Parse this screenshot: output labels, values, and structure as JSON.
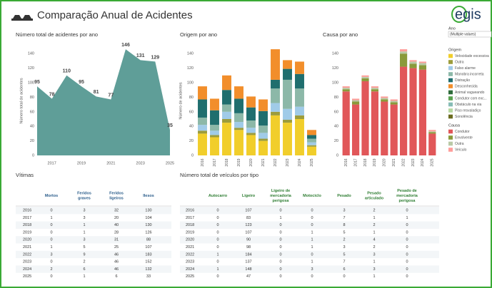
{
  "header": {
    "title": "Comparação Anual de Acidentes",
    "logo": "egis"
  },
  "filters": {
    "label": "Ano",
    "value": "(Multiple values)"
  },
  "chart_data": [
    {
      "type": "area",
      "title": "Número total de acidentes por ano",
      "y_label": "Número total de acidentes",
      "color": "#5f9e98",
      "x": [
        2016,
        2017,
        2018,
        2019,
        2020,
        2021,
        2022,
        2023,
        2024,
        2025
      ],
      "values": [
        95,
        78,
        110,
        95,
        81,
        77,
        146,
        131,
        129,
        35
      ],
      "xlim": [
        2016,
        2025
      ],
      "xticks": [
        2017,
        2019,
        2021,
        2023,
        2025
      ],
      "ylim": [
        0,
        150
      ],
      "yticks": [
        0,
        20,
        40,
        60,
        80,
        100,
        120,
        140
      ],
      "grid": false
    },
    {
      "type": "bar",
      "title": "Origem por ano",
      "y_label": "Número de acidentes",
      "legend_title": "Origem",
      "stacked": true,
      "categories": [
        "2016",
        "2017",
        "2018",
        "2019",
        "2020",
        "2021",
        "2022",
        "2023",
        "2024",
        "2025"
      ],
      "ylim": [
        0,
        150
      ],
      "yticks": [
        0,
        20,
        40,
        60,
        80,
        100,
        120,
        140
      ],
      "grid": false,
      "series": [
        {
          "name": "Velocidade excessiva",
          "color": "#f1ce2b",
          "values": [
            30,
            25,
            45,
            35,
            28,
            20,
            55,
            45,
            50,
            12
          ]
        },
        {
          "name": "Outra",
          "color": "#9c9c3c",
          "values": [
            4,
            3,
            5,
            3,
            3,
            3,
            5,
            4,
            5,
            2
          ]
        },
        {
          "name": "Falso alarme",
          "color": "#a0cbe8",
          "values": [
            8,
            6,
            10,
            8,
            7,
            8,
            12,
            15,
            12,
            4
          ]
        },
        {
          "name": "Manobra incorreta",
          "color": "#8cb8a8",
          "values": [
            10,
            8,
            10,
            12,
            10,
            10,
            20,
            40,
            25,
            5
          ]
        },
        {
          "name": "Distração",
          "color": "#1f6e6e",
          "values": [
            25,
            20,
            20,
            20,
            18,
            20,
            12,
            15,
            20,
            5
          ]
        },
        {
          "name": "Desconhecida",
          "color": "#f28e2b",
          "values": [
            18,
            16,
            20,
            17,
            15,
            16,
            42,
            12,
            17,
            7
          ]
        },
        {
          "name": "Animal vagueando",
          "color": "#2e6b3a",
          "values": [
            0,
            0,
            0,
            0,
            0,
            0,
            0,
            0,
            0,
            0
          ]
        },
        {
          "name": "Condutor com exc...",
          "color": "#59a14f",
          "values": [
            0,
            0,
            0,
            0,
            0,
            0,
            0,
            0,
            0,
            0
          ]
        },
        {
          "name": "Obstáculo na via",
          "color": "#86bcb6",
          "values": [
            0,
            0,
            0,
            0,
            0,
            0,
            0,
            0,
            0,
            0
          ]
        },
        {
          "name": "Piso resvaladiço",
          "color": "#b5d7a0",
          "values": [
            0,
            0,
            0,
            0,
            0,
            0,
            0,
            0,
            0,
            0
          ]
        },
        {
          "name": "Sonolência",
          "color": "#6b6b1f",
          "values": [
            0,
            0,
            0,
            0,
            0,
            0,
            0,
            0,
            0,
            0
          ]
        }
      ]
    },
    {
      "type": "bar",
      "title": "Causa por ano",
      "legend_title": "Causa",
      "stacked": true,
      "categories": [
        "2016",
        "2017",
        "2018",
        "2019",
        "2020",
        "2021",
        "2022",
        "2023",
        "2024",
        "2025"
      ],
      "ylim": [
        0,
        150
      ],
      "yticks": [
        0,
        20,
        40,
        60,
        80,
        100,
        120,
        140
      ],
      "grid": false,
      "series": [
        {
          "name": "Condutor",
          "color": "#e15759",
          "values": [
            88,
            70,
            102,
            88,
            74,
            70,
            122,
            120,
            118,
            30
          ]
        },
        {
          "name": "Envolvente",
          "color": "#8a9a3a",
          "values": [
            3,
            4,
            4,
            3,
            3,
            3,
            18,
            6,
            6,
            2
          ]
        },
        {
          "name": "Outra",
          "color": "#b9c9a6",
          "values": [
            2,
            2,
            2,
            2,
            2,
            2,
            3,
            3,
            3,
            1
          ]
        },
        {
          "name": "Veículo",
          "color": "#ff9d9a",
          "values": [
            2,
            2,
            2,
            2,
            2,
            2,
            3,
            2,
            2,
            2
          ]
        }
      ]
    }
  ],
  "tables": [
    {
      "title": "Vítimas",
      "header_color": "#2a5c8a",
      "columns": [
        "Mortos",
        "Feridos graves",
        "Feridos ligeiros",
        "Ilesos"
      ],
      "rows": [
        [
          2016,
          0,
          3,
          32,
          130
        ],
        [
          2017,
          1,
          3,
          20,
          104
        ],
        [
          2018,
          0,
          1,
          40,
          130
        ],
        [
          2019,
          0,
          1,
          28,
          126
        ],
        [
          2020,
          0,
          3,
          31,
          88
        ],
        [
          2021,
          1,
          5,
          25,
          107
        ],
        [
          2022,
          3,
          9,
          46,
          183
        ],
        [
          2023,
          0,
          2,
          46,
          152
        ],
        [
          2024,
          2,
          6,
          46,
          132
        ],
        [
          2025,
          0,
          1,
          6,
          33
        ]
      ]
    },
    {
      "title": "Número total de veículos por tipo",
      "header_color": "#2e7d32",
      "columns": [
        "Autocarro",
        "Ligeiro",
        "Ligeiro de mercadoria perigosa",
        "Motociclo",
        "Pesado",
        "Pesado articulado",
        "Pesado de mercadoria perigosa"
      ],
      "rows": [
        [
          2016,
          0,
          107,
          0,
          0,
          3,
          2,
          0
        ],
        [
          2017,
          0,
          83,
          1,
          0,
          7,
          1,
          1
        ],
        [
          2018,
          0,
          123,
          0,
          0,
          8,
          2,
          0
        ],
        [
          2019,
          0,
          107,
          0,
          1,
          5,
          1,
          0
        ],
        [
          2020,
          0,
          90,
          0,
          1,
          2,
          4,
          0
        ],
        [
          2021,
          0,
          98,
          0,
          1,
          3,
          2,
          0
        ],
        [
          2022,
          1,
          184,
          0,
          0,
          5,
          3,
          0
        ],
        [
          2023,
          0,
          137,
          0,
          1,
          7,
          1,
          0
        ],
        [
          2024,
          1,
          148,
          0,
          3,
          6,
          3,
          0
        ],
        [
          2025,
          0,
          47,
          0,
          0,
          0,
          1,
          0
        ]
      ]
    }
  ]
}
